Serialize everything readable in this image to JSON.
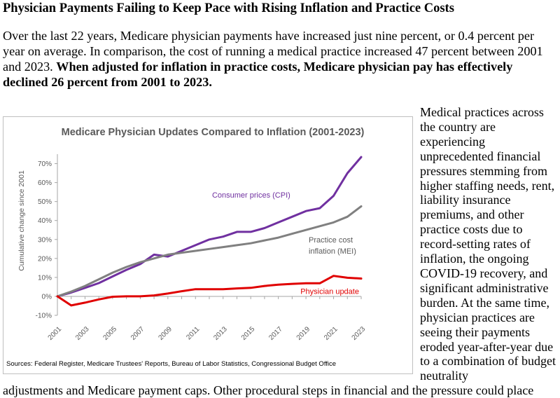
{
  "heading": "Physician Payments Failing to Keep Pace with Rising Inflation and Practice Costs",
  "intro": {
    "text": "Over the last 22 years, Medicare physician payments have increased just nine percent, or 0.4 percent per year on average. In comparison, the cost of running a medical practice increased 47 percent between 2001 and 2023. ",
    "bold": "When adjusted for inflation in practice costs, Medicare physician pay has effectively declined 26 percent from 2001 to 2023."
  },
  "sidebar_text": "Medical practices across the country are experiencing unprecedented financial pressures stemming from higher staffing needs, rent, liability insurance premiums, and other practice costs due to record-setting rates of inflation, the ongoing COVID-19 recovery, and significant administrative burden. At the same time, physician practices are seeing their payments eroded year-after-year due to a combination of budget neutrality",
  "bottom_text": "adjustments and Medicare payment caps. Other procedural steps in financial and the pressure could place",
  "colors": {
    "cpi": "#7030a0",
    "mei": "#808080",
    "physician": "#e00000",
    "border": "#bfbfbf",
    "grid": "#d9d9d9"
  },
  "chart_data": {
    "type": "line",
    "title": "Medicare Physician Updates Compared to Inflation (2001-2023)",
    "ylabel": "Cumulative change since 2001",
    "xlabel": "",
    "ylim": [
      -10,
      75
    ],
    "yticks": [
      -10,
      0,
      10,
      20,
      30,
      40,
      50,
      60,
      70
    ],
    "ytick_labels": [
      "-10%",
      "0%",
      "10%",
      "20%",
      "30%",
      "40%",
      "50%",
      "60%",
      "70%"
    ],
    "xlim": [
      2001,
      2023
    ],
    "xticks": [
      2001,
      2003,
      2005,
      2007,
      2009,
      2011,
      2013,
      2015,
      2017,
      2019,
      2021,
      2023
    ],
    "xtick_labels": [
      "2001",
      "2003",
      "2005",
      "2007",
      "2009",
      "2011",
      "2013",
      "2015",
      "2017",
      "2019",
      "2021",
      "2023"
    ],
    "x": [
      2001,
      2002,
      2003,
      2004,
      2005,
      2006,
      2007,
      2008,
      2009,
      2010,
      2011,
      2012,
      2013,
      2014,
      2015,
      2016,
      2017,
      2018,
      2019,
      2020,
      2021,
      2022,
      2023
    ],
    "series": [
      {
        "name": "Consumer prices (CPI)",
        "label": "Consumer prices (CPI)",
        "color_key": "cpi",
        "values": [
          0,
          2,
          4.5,
          7,
          10.5,
          14,
          17,
          22,
          21,
          24,
          27,
          30,
          31.5,
          34,
          34,
          36,
          39,
          42,
          45,
          46.5,
          53,
          65,
          73.5
        ]
      },
      {
        "name": "Practice cost inflation (MEI)",
        "label_lines": [
          "Practice cost",
          "inflation (MEI)"
        ],
        "color_key": "mei",
        "values": [
          0,
          2.5,
          5.5,
          9,
          12.5,
          15.5,
          18,
          20,
          22,
          23,
          24,
          25,
          26,
          27,
          28,
          29.5,
          31,
          33,
          35,
          37,
          39,
          42,
          47.5
        ]
      },
      {
        "name": "Physician update",
        "label": "Physician update",
        "color_key": "physician",
        "values": [
          0,
          -4.8,
          -3.3,
          -1.6,
          -0.2,
          0,
          0,
          0.5,
          1.5,
          2.7,
          3.8,
          3.8,
          3.8,
          4.2,
          4.5,
          5.5,
          6.2,
          6.6,
          6.9,
          6.9,
          10.8,
          9.8,
          9.4
        ]
      }
    ],
    "source": "Sources:  Federal Register, Medicare Trustees' Reports, Bureau of Labor Statistics, Congressional Budget Office"
  }
}
